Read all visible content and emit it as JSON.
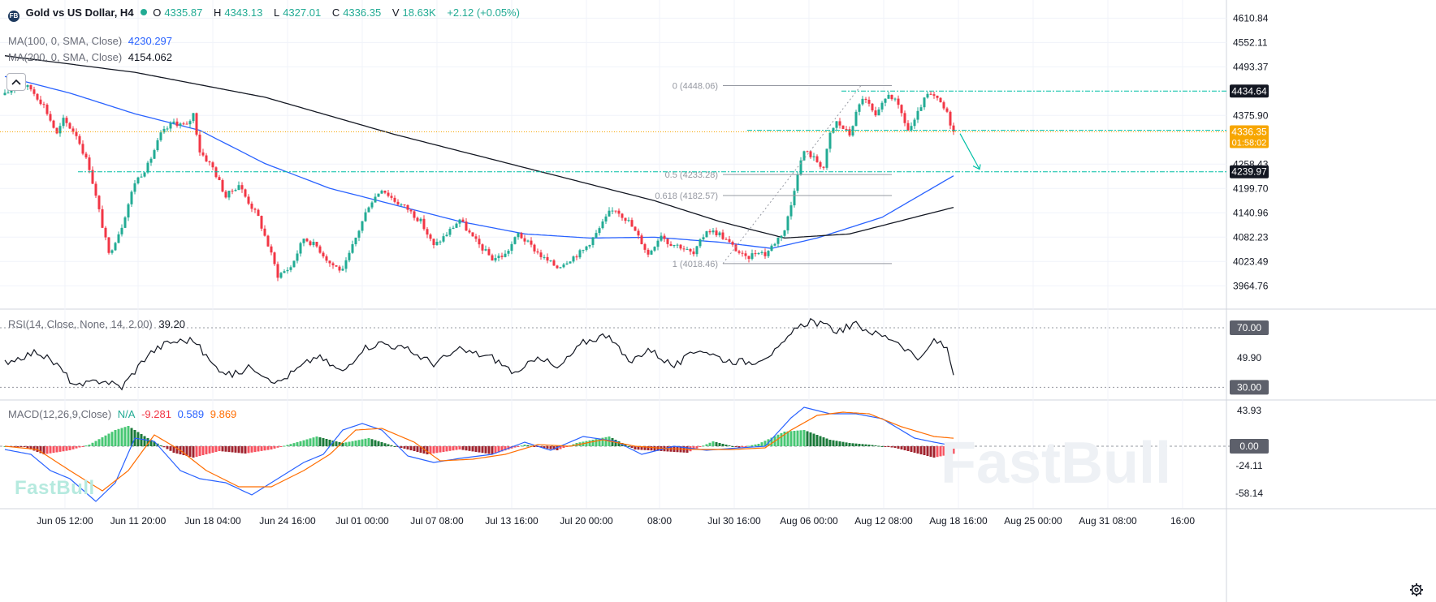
{
  "header": {
    "symbol_badge": "FB",
    "symbol": "Gold vs US Dollar, H4",
    "o_key": "O",
    "o_val": "4335.87",
    "h_key": "H",
    "h_val": "4343.13",
    "l_key": "L",
    "l_val": "4327.01",
    "c_key": "C",
    "c_val": "4336.35",
    "v_key": "V",
    "v_val": "18.63K",
    "change": "+2.12 (+0.05%)"
  },
  "indicators": {
    "ma100_label": "MA(100, 0, SMA, Close)",
    "ma100_value": "4230.297",
    "ma200_label": "MA(200, 0, SMA, Close)",
    "ma200_value": "4154.062",
    "rsi_label": "RSI(14, Close, None, 14, 2.00)",
    "rsi_value": "39.20",
    "macd_label": "MACD(12,26,9,Close)",
    "macd_na": "N/A",
    "macd_hist": "-9.281",
    "macd_line": "0.589",
    "macd_signal": "9.869"
  },
  "watermark": "FastBull",
  "colors": {
    "up": "#22ab94",
    "down": "#f23645",
    "ma100": "#2962ff",
    "ma200": "#131722",
    "macd_line": "#2962ff",
    "signal_line": "#ff6d00",
    "accent_teal": "#00bfa5",
    "price_label": "#f7a600",
    "fib": "#9598a1"
  },
  "chart_data": [
    {
      "type": "candlestick",
      "title": "Gold vs US Dollar, H4",
      "x_tick_labels": [
        "Jun 05 12:00",
        "Jun 11 20:00",
        "Jun 18 04:00",
        "Jun 24 16:00",
        "Jul 01 00:00",
        "Jul 07 08:00",
        "Jul 13 16:00",
        "Jul 20 00:00",
        "08:00",
        "Jul 30 16:00",
        "Aug 06 00:00",
        "Aug 12 08:00",
        "Aug 18 16:00",
        "Aug 25 00:00",
        "Aug 31 08:00",
        "16:00"
      ],
      "y_tick_labels": [
        "4610.84",
        "4552.11",
        "4493.37",
        "4375.90",
        "4258.43",
        "4199.70",
        "4140.96",
        "4082.23",
        "4023.49",
        "3964.76"
      ],
      "ylim": [
        3930,
        4635
      ],
      "close_path_keypoints": [
        [
          0,
          4425
        ],
        [
          4,
          4455
        ],
        [
          8,
          4440
        ],
        [
          12,
          4400
        ],
        [
          16,
          4330
        ],
        [
          18,
          4365
        ],
        [
          22,
          4330
        ],
        [
          26,
          4250
        ],
        [
          30,
          4110
        ],
        [
          32,
          4040
        ],
        [
          36,
          4110
        ],
        [
          40,
          4215
        ],
        [
          44,
          4255
        ],
        [
          48,
          4330
        ],
        [
          52,
          4360
        ],
        [
          56,
          4350
        ],
        [
          58,
          4380
        ],
        [
          60,
          4290
        ],
        [
          64,
          4250
        ],
        [
          68,
          4180
        ],
        [
          72,
          4210
        ],
        [
          74,
          4180
        ],
        [
          78,
          4130
        ],
        [
          82,
          4040
        ],
        [
          84,
          3990
        ],
        [
          88,
          4010
        ],
        [
          92,
          4080
        ],
        [
          96,
          4060
        ],
        [
          100,
          4020
        ],
        [
          104,
          4000
        ],
        [
          108,
          4080
        ],
        [
          112,
          4160
        ],
        [
          116,
          4200
        ],
        [
          120,
          4170
        ],
        [
          124,
          4150
        ],
        [
          128,
          4120
        ],
        [
          132,
          4060
        ],
        [
          136,
          4090
        ],
        [
          140,
          4125
        ],
        [
          144,
          4080
        ],
        [
          150,
          4030
        ],
        [
          154,
          4040
        ],
        [
          158,
          4090
        ],
        [
          162,
          4060
        ],
        [
          166,
          4030
        ],
        [
          170,
          4010
        ],
        [
          174,
          4030
        ],
        [
          178,
          4050
        ],
        [
          182,
          4090
        ],
        [
          186,
          4140
        ],
        [
          188,
          4150
        ],
        [
          192,
          4120
        ],
        [
          196,
          4070
        ],
        [
          198,
          4040
        ],
        [
          202,
          4090
        ],
        [
          204,
          4070
        ],
        [
          208,
          4060
        ],
        [
          212,
          4040
        ],
        [
          216,
          4100
        ],
        [
          220,
          4090
        ],
        [
          224,
          4060
        ],
        [
          228,
          4030
        ],
        [
          232,
          4050
        ],
        [
          234,
          4040
        ],
        [
          238,
          4080
        ],
        [
          240,
          4100
        ],
        [
          242,
          4160
        ],
        [
          244,
          4240
        ],
        [
          246,
          4290
        ],
        [
          248,
          4280
        ],
        [
          252,
          4250
        ],
        [
          254,
          4330
        ],
        [
          256,
          4360
        ],
        [
          260,
          4330
        ],
        [
          262,
          4380
        ],
        [
          264,
          4420
        ],
        [
          266,
          4400
        ],
        [
          268,
          4370
        ],
        [
          270,
          4400
        ],
        [
          272,
          4430
        ],
        [
          274,
          4410
        ],
        [
          276,
          4380
        ],
        [
          278,
          4340
        ],
        [
          280,
          4360
        ],
        [
          282,
          4400
        ],
        [
          284,
          4425
        ],
        [
          286,
          4420
        ],
        [
          288,
          4405
        ],
        [
          290,
          4380
        ],
        [
          292,
          4336.35
        ]
      ],
      "series": [
        {
          "name": "MA(100, 0, SMA, Close)",
          "keypoints": [
            [
              0,
              4470
            ],
            [
              20,
              4430
            ],
            [
              40,
              4380
            ],
            [
              60,
              4340
            ],
            [
              80,
              4260
            ],
            [
              100,
              4200
            ],
            [
              120,
              4160
            ],
            [
              140,
              4120
            ],
            [
              160,
              4090
            ],
            [
              180,
              4080
            ],
            [
              200,
              4082
            ],
            [
              220,
              4070
            ],
            [
              236,
              4055
            ],
            [
              250,
              4080
            ],
            [
              270,
              4130
            ],
            [
              292,
              4230.297
            ]
          ]
        },
        {
          "name": "MA(200, 0, SMA, Close)",
          "keypoints": [
            [
              0,
              4520
            ],
            [
              40,
              4480
            ],
            [
              80,
              4420
            ],
            [
              120,
              4330
            ],
            [
              160,
              4250
            ],
            [
              200,
              4170
            ],
            [
              220,
              4120
            ],
            [
              240,
              4080
            ],
            [
              260,
              4090
            ],
            [
              280,
              4130
            ],
            [
              292,
              4154.062
            ]
          ]
        }
      ],
      "fibonacci": [
        {
          "level": "0 (4448.06)",
          "price": 4448.06
        },
        {
          "level": "0.5 (4233.28)",
          "price": 4233.28
        },
        {
          "level": "0.618 (4182.57)",
          "price": 4182.57
        },
        {
          "level": "1 (4018.46)",
          "price": 4018.46
        }
      ],
      "horizontal_lines": [
        {
          "label": "4434.64",
          "price": 4434.64
        },
        {
          "label": "4239.97",
          "price": 4239.97
        }
      ],
      "current_price": {
        "price": 4336.35,
        "label": "4336.35",
        "countdown": "01:58:02"
      }
    },
    {
      "type": "line",
      "title": "RSI(14, Close, None, 14, 2.00)",
      "ylim": [
        22,
        82
      ],
      "levels": [
        {
          "label": "70.00",
          "value": 70
        },
        {
          "label": "49.90",
          "value": 49.9
        },
        {
          "label": "30.00",
          "value": 30
        }
      ],
      "keypoints": [
        [
          0,
          47
        ],
        [
          10,
          54
        ],
        [
          16,
          45
        ],
        [
          22,
          30
        ],
        [
          30,
          35
        ],
        [
          36,
          30
        ],
        [
          44,
          52
        ],
        [
          50,
          60
        ],
        [
          58,
          62
        ],
        [
          64,
          45
        ],
        [
          70,
          38
        ],
        [
          76,
          44
        ],
        [
          84,
          33
        ],
        [
          90,
          42
        ],
        [
          96,
          51
        ],
        [
          104,
          40
        ],
        [
          110,
          56
        ],
        [
          116,
          60
        ],
        [
          124,
          55
        ],
        [
          132,
          46
        ],
        [
          140,
          55
        ],
        [
          150,
          50
        ],
        [
          158,
          38
        ],
        [
          164,
          52
        ],
        [
          170,
          42
        ],
        [
          178,
          60
        ],
        [
          186,
          66
        ],
        [
          192,
          46
        ],
        [
          198,
          56
        ],
        [
          206,
          44
        ],
        [
          214,
          56
        ],
        [
          222,
          48
        ],
        [
          230,
          47
        ],
        [
          238,
          55
        ],
        [
          244,
          70
        ],
        [
          248,
          75
        ],
        [
          256,
          68
        ],
        [
          262,
          72
        ],
        [
          268,
          66
        ],
        [
          274,
          62
        ],
        [
          282,
          48
        ],
        [
          286,
          62
        ],
        [
          290,
          56
        ],
        [
          292,
          39.2
        ]
      ]
    },
    {
      "type": "bar+line",
      "title": "MACD(12,26,9,Close)",
      "ylim": [
        -76,
        56
      ],
      "y_tick_labels": [
        "43.93",
        "0.00",
        "-24.11",
        "-58.14"
      ],
      "histogram_keypoints": [
        [
          0,
          0
        ],
        [
          6,
          -1
        ],
        [
          12,
          -10
        ],
        [
          20,
          -5
        ],
        [
          26,
          2
        ],
        [
          34,
          20
        ],
        [
          38,
          25
        ],
        [
          44,
          10
        ],
        [
          52,
          -8
        ],
        [
          58,
          -14
        ],
        [
          66,
          -6
        ],
        [
          74,
          -9
        ],
        [
          82,
          -4
        ],
        [
          90,
          5
        ],
        [
          96,
          12
        ],
        [
          104,
          4
        ],
        [
          112,
          10
        ],
        [
          120,
          0
        ],
        [
          130,
          -10
        ],
        [
          140,
          -4
        ],
        [
          150,
          -10
        ],
        [
          160,
          2
        ],
        [
          170,
          -5
        ],
        [
          176,
          4
        ],
        [
          186,
          12
        ],
        [
          194,
          -4
        ],
        [
          202,
          -6
        ],
        [
          210,
          -8
        ],
        [
          218,
          6
        ],
        [
          226,
          -2
        ],
        [
          232,
          3
        ],
        [
          240,
          18
        ],
        [
          246,
          20
        ],
        [
          254,
          8
        ],
        [
          260,
          4
        ],
        [
          266,
          2
        ],
        [
          274,
          -2
        ],
        [
          280,
          -8
        ],
        [
          286,
          -14
        ],
        [
          292,
          -9.281
        ]
      ],
      "macd_line_keypoints": [
        [
          0,
          -4
        ],
        [
          8,
          -10
        ],
        [
          14,
          -30
        ],
        [
          20,
          -40
        ],
        [
          28,
          -68
        ],
        [
          34,
          -45
        ],
        [
          40,
          10
        ],
        [
          46,
          6
        ],
        [
          54,
          -30
        ],
        [
          60,
          -40
        ],
        [
          68,
          -45
        ],
        [
          76,
          -60
        ],
        [
          84,
          -40
        ],
        [
          92,
          -20
        ],
        [
          98,
          -10
        ],
        [
          104,
          20
        ],
        [
          110,
          28
        ],
        [
          116,
          20
        ],
        [
          124,
          -12
        ],
        [
          132,
          -20
        ],
        [
          140,
          -15
        ],
        [
          150,
          -10
        ],
        [
          160,
          5
        ],
        [
          168,
          -5
        ],
        [
          178,
          12
        ],
        [
          188,
          6
        ],
        [
          196,
          -10
        ],
        [
          206,
          0
        ],
        [
          216,
          -5
        ],
        [
          226,
          -2
        ],
        [
          234,
          0
        ],
        [
          242,
          35
        ],
        [
          246,
          48
        ],
        [
          254,
          40
        ],
        [
          262,
          40
        ],
        [
          270,
          34
        ],
        [
          280,
          10
        ],
        [
          286,
          5
        ],
        [
          292,
          0.589
        ]
      ],
      "signal_line_keypoints": [
        [
          0,
          0
        ],
        [
          10,
          -4
        ],
        [
          20,
          -30
        ],
        [
          30,
          -55
        ],
        [
          38,
          -30
        ],
        [
          46,
          14
        ],
        [
          54,
          -5
        ],
        [
          62,
          -30
        ],
        [
          72,
          -50
        ],
        [
          82,
          -50
        ],
        [
          92,
          -30
        ],
        [
          100,
          -10
        ],
        [
          108,
          20
        ],
        [
          116,
          22
        ],
        [
          126,
          5
        ],
        [
          134,
          -18
        ],
        [
          144,
          -16
        ],
        [
          154,
          -10
        ],
        [
          164,
          2
        ],
        [
          174,
          0
        ],
        [
          184,
          8
        ],
        [
          194,
          0
        ],
        [
          204,
          -3
        ],
        [
          214,
          -4
        ],
        [
          224,
          -4
        ],
        [
          234,
          -2
        ],
        [
          242,
          20
        ],
        [
          250,
          38
        ],
        [
          258,
          42
        ],
        [
          266,
          40
        ],
        [
          276,
          24
        ],
        [
          286,
          12
        ],
        [
          292,
          9.869
        ]
      ]
    }
  ]
}
